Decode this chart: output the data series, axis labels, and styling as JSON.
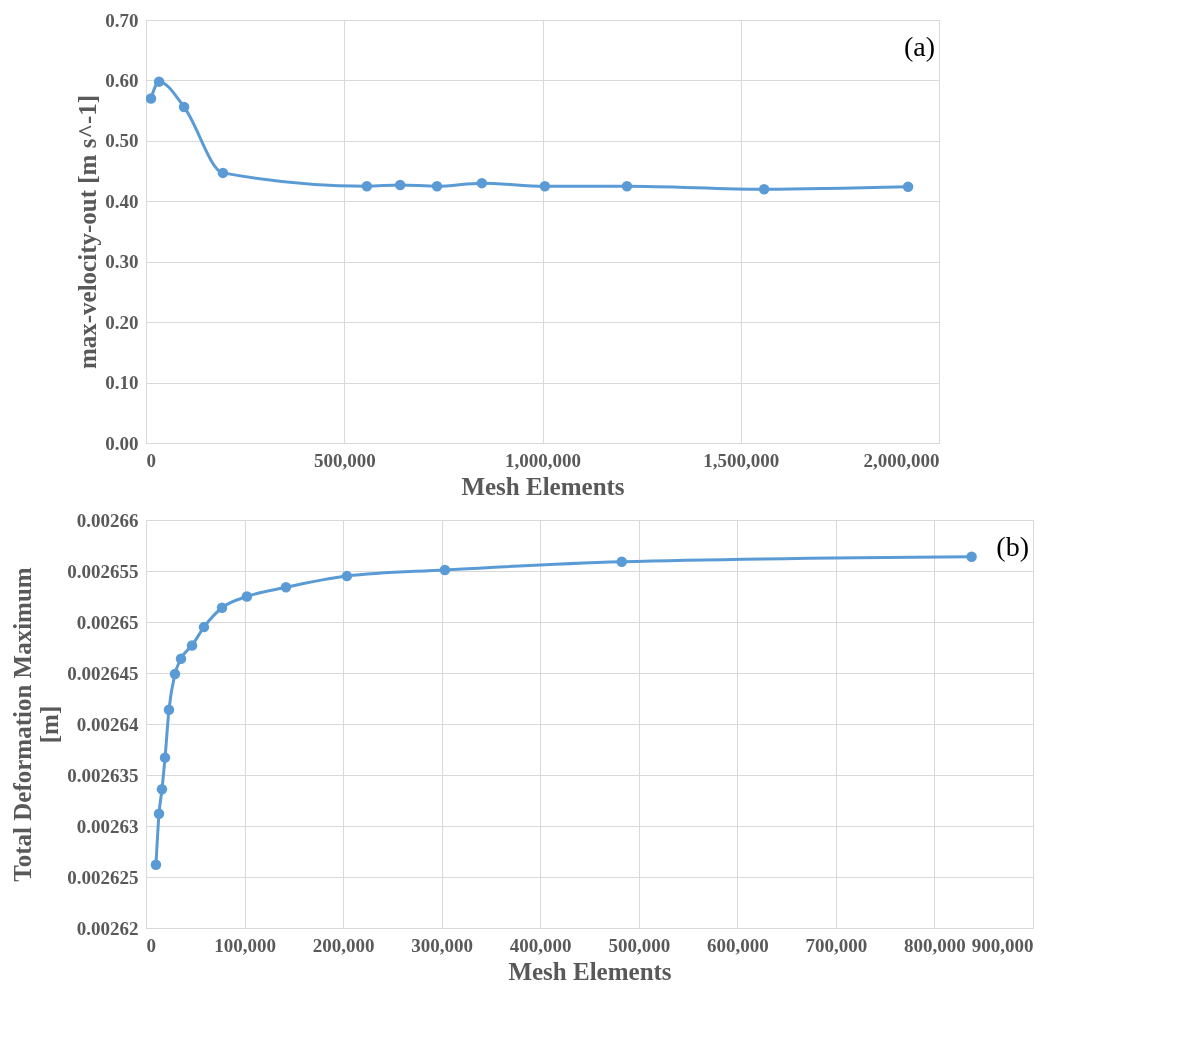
{
  "chart_data": [
    {
      "type": "line",
      "xlabel": "Mesh Elements",
      "ylabel": "max-velocity-out [m s^-1]",
      "annotations": [
        "(a)"
      ],
      "x": [
        12600,
        33000,
        96000,
        194000,
        557000,
        641000,
        734000,
        847000,
        1006000,
        1213000,
        1559000,
        1922000
      ],
      "series": [
        {
          "color": "#5b9bd5",
          "values": [
            0.57,
            0.598,
            0.556,
            0.447,
            0.425,
            0.427,
            0.425,
            0.43,
            0.425,
            0.425,
            0.42,
            0.424
          ]
        }
      ],
      "xlim": [
        0,
        2000000
      ],
      "xticks": [
        0,
        {
          "value": 500000,
          "label": "500,000"
        },
        {
          "value": 1000000,
          "label": "1,000,000"
        },
        {
          "value": 1500000,
          "label": "1,500,000"
        },
        {
          "value": 2000000,
          "label": "2,000,000"
        }
      ],
      "ylim": [
        0,
        0.7
      ],
      "yticks": [
        {
          "value": 0,
          "label": "0.00"
        },
        {
          "value": 0.1,
          "label": "0.10"
        },
        {
          "value": 0.2,
          "label": "0.20"
        },
        {
          "value": 0.3,
          "label": "0.30"
        },
        {
          "value": 0.4,
          "label": "0.40"
        },
        {
          "value": 0.5,
          "label": "0.50"
        },
        {
          "value": 0.6,
          "label": "0.60"
        },
        {
          "value": 0.7,
          "label": "0.70"
        }
      ],
      "grid": true,
      "marker": "circle",
      "line_style": "solid"
    },
    {
      "type": "line",
      "xlabel": "Mesh Elements",
      "ylabel": "Total Deformation Maximum\n[m]",
      "annotations": [
        "(b)"
      ],
      "x": [
        10100,
        13200,
        16200,
        19300,
        23300,
        29400,
        35500,
        46700,
        58800,
        77100,
        102400,
        142000,
        203900,
        303300,
        482700,
        837700
      ],
      "series": [
        {
          "color": "#5b9bd5",
          "values": [
            0.0026262,
            0.0026312,
            0.0026336,
            0.0026367,
            0.0026414,
            0.0026449,
            0.0026464,
            0.0026477,
            0.0026495,
            0.0026514,
            0.0026525,
            0.0026534,
            0.0026545,
            0.0026551,
            0.0026559,
            0.0026564
          ]
        }
      ],
      "xlim": [
        0,
        900000
      ],
      "xticks": [
        0,
        {
          "value": 100000,
          "label": "100,000"
        },
        {
          "value": 200000,
          "label": "200,000"
        },
        {
          "value": 300000,
          "label": "300,000"
        },
        {
          "value": 400000,
          "label": "400,000"
        },
        {
          "value": 500000,
          "label": "500,000"
        },
        {
          "value": 600000,
          "label": "600,000"
        },
        {
          "value": 700000,
          "label": "700,000"
        },
        {
          "value": 800000,
          "label": "800,000"
        },
        {
          "value": 900000,
          "label": "900,000"
        }
      ],
      "ylim": [
        0.00262,
        0.00266
      ],
      "yticks": [
        0.00262,
        0.002625,
        0.00263,
        0.002635,
        0.00264,
        0.002645,
        0.00265,
        0.002655,
        0.00266
      ],
      "grid": true,
      "marker": "circle",
      "line_style": "solid"
    }
  ]
}
